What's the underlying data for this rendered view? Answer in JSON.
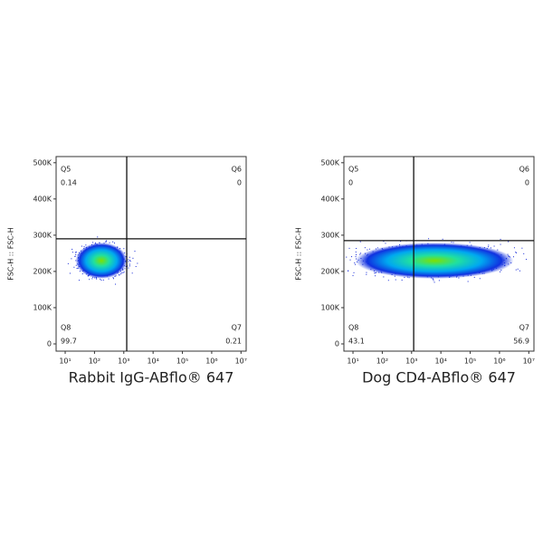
{
  "chart_data": [
    {
      "type": "scatter",
      "x_label": "Rabbit IgG-ABflo® 647",
      "y_label": "FSC-H :: FSC-H",
      "xscale": "log",
      "xlim": [
        4.9,
        15000000
      ],
      "xticks": [
        {
          "value": 10,
          "label": "10¹"
        },
        {
          "value": 100,
          "label": "10²"
        },
        {
          "value": 1000,
          "label": "10³"
        },
        {
          "value": 10000,
          "label": "10⁴"
        },
        {
          "value": 100000,
          "label": "10⁵"
        },
        {
          "value": 1000000,
          "label": "10⁶"
        },
        {
          "value": 10000000,
          "label": "10⁷"
        }
      ],
      "ylim": [
        -20000,
        517000
      ],
      "yticks": [
        0,
        {
          "value": 100000,
          "label": "100K"
        },
        {
          "value": 200000,
          "label": "200K"
        },
        {
          "value": 300000,
          "label": "300K"
        },
        {
          "value": 400000,
          "label": "400K"
        },
        {
          "value": 500000,
          "label": "500K"
        }
      ],
      "gates": {
        "x": 1260,
        "y": 290000
      },
      "quadrants": [
        {
          "name": "Q5",
          "value": 0.14
        },
        {
          "name": "Q6",
          "value": 0
        },
        {
          "name": "Q8",
          "value": 99.7
        },
        {
          "name": "Q7",
          "value": 0.21
        }
      ]
    },
    {
      "type": "scatter",
      "x_label": "Dog CD4-ABflo® 647",
      "y_label": "FSC-H :: FSC-H",
      "xscale": "log",
      "xlim": [
        4.9,
        15000000
      ],
      "xticks": [
        {
          "value": 10,
          "label": "10¹"
        },
        {
          "value": 100,
          "label": "10²"
        },
        {
          "value": 1000,
          "label": "10³"
        },
        {
          "value": 10000,
          "label": "10⁴"
        },
        {
          "value": 100000,
          "label": "10⁵"
        },
        {
          "value": 1000000,
          "label": "10⁶"
        },
        {
          "value": 10000000,
          "label": "10⁷"
        }
      ],
      "ylim": [
        -20000,
        517000
      ],
      "yticks": [
        0,
        {
          "value": 100000,
          "label": "100K"
        },
        {
          "value": 200000,
          "label": "200K"
        },
        {
          "value": 300000,
          "label": "300K"
        },
        {
          "value": 400000,
          "label": "400K"
        },
        {
          "value": 500000,
          "label": "500K"
        }
      ],
      "gates": {
        "x": 1180,
        "y": 285000
      },
      "quadrants": [
        {
          "name": "Q5",
          "value": 0
        },
        {
          "name": "Q6",
          "value": 0
        },
        {
          "name": "Q8",
          "value": 43.1
        },
        {
          "name": "Q7",
          "value": 56.9
        }
      ]
    }
  ]
}
